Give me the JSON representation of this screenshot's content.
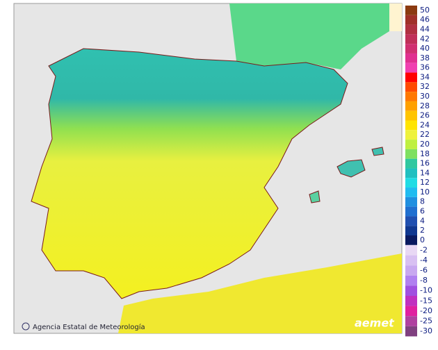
{
  "legend": {
    "entries": [
      {
        "value": 50,
        "color": "#8b3a10"
      },
      {
        "value": 46,
        "color": "#a03028"
      },
      {
        "value": 44,
        "color": "#b03040"
      },
      {
        "value": 42,
        "color": "#c03058"
      },
      {
        "value": 40,
        "color": "#d03070"
      },
      {
        "value": 38,
        "color": "#e03090"
      },
      {
        "value": 36,
        "color": "#f040b0"
      },
      {
        "value": 34,
        "color": "#ff0000"
      },
      {
        "value": 32,
        "color": "#ff4a00"
      },
      {
        "value": 30,
        "color": "#ff7800"
      },
      {
        "value": 28,
        "color": "#ffa000"
      },
      {
        "value": 26,
        "color": "#ffc400"
      },
      {
        "value": 24,
        "color": "#ffe400"
      },
      {
        "value": 22,
        "color": "#eef23c"
      },
      {
        "value": 20,
        "color": "#bff040"
      },
      {
        "value": 18,
        "color": "#7ee060"
      },
      {
        "value": 16,
        "color": "#30c8a0"
      },
      {
        "value": 14,
        "color": "#20c0c0"
      },
      {
        "value": 12,
        "color": "#20dce4"
      },
      {
        "value": 10,
        "color": "#20bcf0"
      },
      {
        "value": 8,
        "color": "#2090e0"
      },
      {
        "value": 6,
        "color": "#2070d0"
      },
      {
        "value": 4,
        "color": "#2050b0"
      },
      {
        "value": 2,
        "color": "#103890"
      },
      {
        "value": 0,
        "color": "#0a1a60"
      },
      {
        "value": -2,
        "color": "#e8d8f4"
      },
      {
        "value": -4,
        "color": "#d8c0f2"
      },
      {
        "value": -6,
        "color": "#c8a8f0"
      },
      {
        "value": -8,
        "color": "#b080f0"
      },
      {
        "value": -10,
        "color": "#a050e0"
      },
      {
        "value": -15,
        "color": "#c030c0"
      },
      {
        "value": -20,
        "color": "#e020a0"
      },
      {
        "value": -25,
        "color": "#b040a0"
      },
      {
        "value": -30,
        "color": "#804080"
      }
    ]
  },
  "footer": {
    "agency": "Agencia Estatal de Meteorología",
    "logo": "aemet"
  }
}
